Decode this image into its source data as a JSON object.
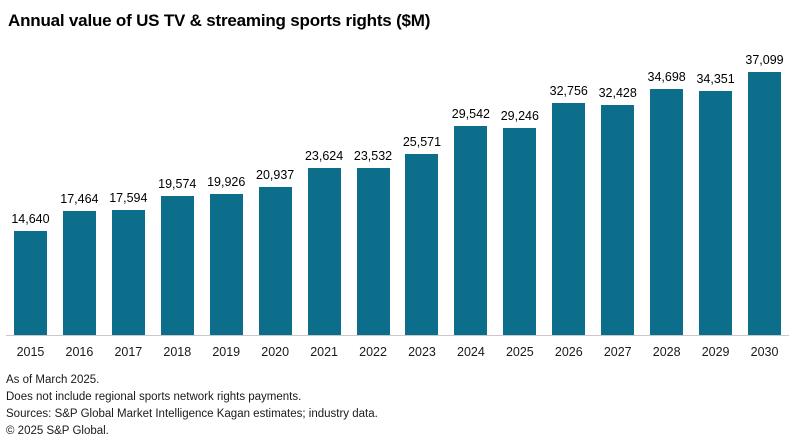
{
  "chart_data": {
    "type": "bar",
    "title": "Annual value of US TV & streaming sports rights ($M)",
    "xlabel": "",
    "ylabel": "",
    "categories": [
      "2015",
      "2016",
      "2017",
      "2018",
      "2019",
      "2020",
      "2021",
      "2022",
      "2023",
      "2024",
      "2025",
      "2026",
      "2027",
      "2028",
      "2029",
      "2030"
    ],
    "values": [
      14640,
      17464,
      17594,
      19574,
      19926,
      20937,
      23624,
      23532,
      25571,
      29542,
      29246,
      32756,
      32428,
      34698,
      34351,
      37099
    ],
    "value_labels": [
      "14,640",
      "17,464",
      "17,594",
      "19,574",
      "19,926",
      "20,937",
      "23,624",
      "23,532",
      "25,571",
      "29,542",
      "29,246",
      "32,756",
      "32,428",
      "34,698",
      "34,351",
      "37,099"
    ],
    "ylim": [
      0,
      37099
    ],
    "grid": false,
    "legend": "none",
    "data_labels": "above-bars"
  },
  "colors": {
    "bar": "#0d6e8c",
    "axis_line": "#c9c9c9",
    "text": "#1a1a1a"
  },
  "footnotes": [
    "As of March 2025.",
    "Does not include regional sports network rights payments.",
    "Sources: S&P Global Market Intelligence Kagan estimates; industry data.",
    "© 2025 S&P Global."
  ]
}
